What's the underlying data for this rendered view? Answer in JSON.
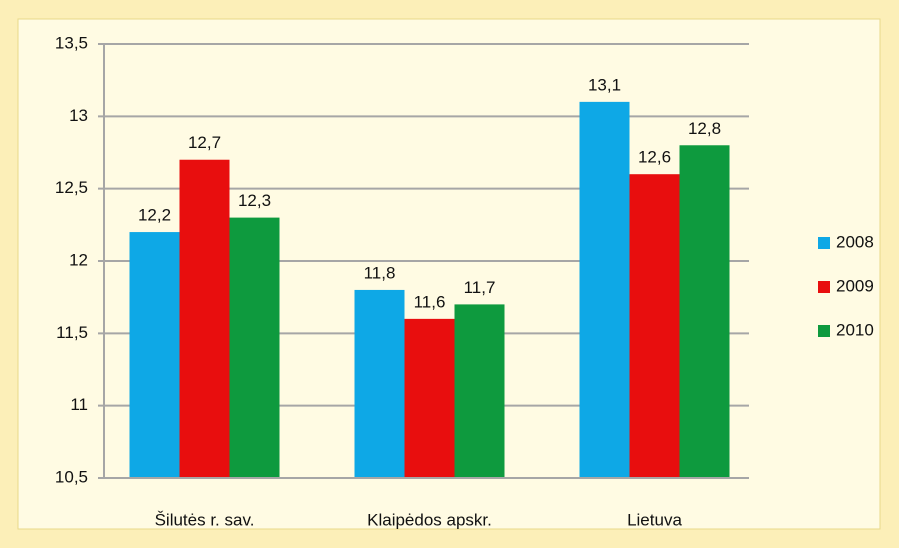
{
  "chart_data": {
    "type": "bar",
    "categories": [
      "Šilutės r. sav.",
      "Klaipėdos apskr.",
      "Lietuva"
    ],
    "series": [
      {
        "name": "2008",
        "color": "#0ea8e6",
        "values": [
          12.2,
          11.8,
          13.1
        ],
        "value_labels": [
          "12,2",
          "11,8",
          "13,1"
        ]
      },
      {
        "name": "2009",
        "color": "#e80e0e",
        "values": [
          12.7,
          11.6,
          12.6
        ],
        "value_labels": [
          "12,7",
          "11,6",
          "12,6"
        ]
      },
      {
        "name": "2010",
        "color": "#0e9a3e",
        "values": [
          12.3,
          11.7,
          12.8
        ],
        "value_labels": [
          "12,3",
          "11,7",
          "12,8"
        ]
      }
    ],
    "ylim": [
      10.5,
      13.5
    ],
    "yticks": [
      {
        "value": 10.5,
        "label": "10,5"
      },
      11,
      {
        "value": 11.5,
        "label": "11,5"
      },
      12,
      {
        "value": 12.5,
        "label": "12,5"
      },
      13,
      {
        "value": 13.5,
        "label": "13,5"
      }
    ],
    "grid": true,
    "legend": "right"
  }
}
